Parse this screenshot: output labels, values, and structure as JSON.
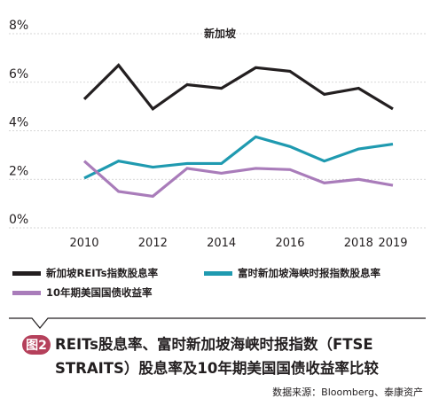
{
  "chart_data": {
    "type": "line",
    "title": "新加坡",
    "x": [
      2010,
      2011,
      2012,
      2013,
      2014,
      2015,
      2016,
      2017,
      2018,
      2019
    ],
    "x_ticks": [
      "2010",
      "2012",
      "2014",
      "2016",
      "2018",
      "2019"
    ],
    "y_ticks": [
      "0%",
      "2%",
      "4%",
      "6%",
      "8%"
    ],
    "ylim": [
      0,
      8
    ],
    "grid": true,
    "legend_position": "bottom",
    "series": [
      {
        "name": "新加坡REITs指数股息率",
        "color": "#231f20",
        "values": [
          5.3,
          6.7,
          4.9,
          5.9,
          5.75,
          6.6,
          6.45,
          5.5,
          5.75,
          4.9
        ]
      },
      {
        "name": "富时新加坡海峡时报指数股息率",
        "color": "#1f9ab0",
        "values": [
          2.05,
          2.75,
          2.5,
          2.65,
          2.65,
          3.75,
          3.35,
          2.75,
          3.25,
          3.45
        ]
      },
      {
        "name": "10年期美国国债收益率",
        "color": "#a97cba",
        "values": [
          2.75,
          1.5,
          1.3,
          2.45,
          2.25,
          2.45,
          2.4,
          1.85,
          2.0,
          1.75
        ]
      }
    ]
  },
  "caption": {
    "badge": "图2",
    "title": "REITs股息率、富时新加坡海峡时报指数（FTSE STRAITS）股息率及10年期美国国债收益率比较",
    "source": "数据来源：Bloomberg、泰康资产"
  }
}
